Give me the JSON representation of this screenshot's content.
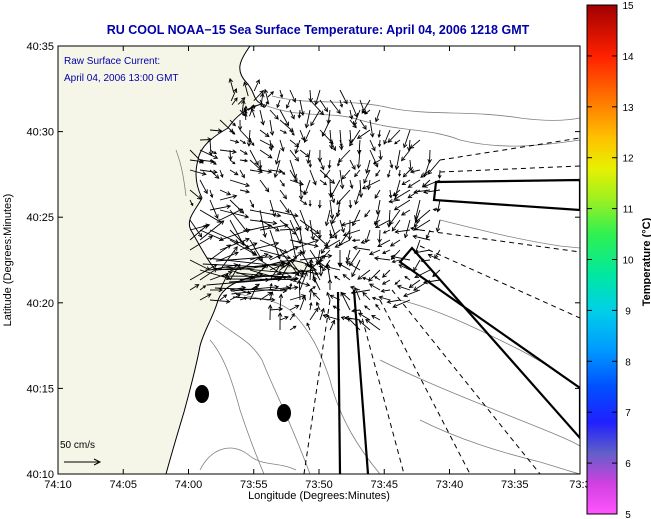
{
  "title": "RU COOL  NOAA−15  Sea Surface Temperature:  April 04, 2006 1218 GMT",
  "annotation": {
    "line1": "Raw Surface Current:",
    "line2": "April 04, 2006 13:00 GMT"
  },
  "scale_label": "50 cm/s",
  "colors": {
    "title": "#0000aa",
    "annotation": "#0000aa",
    "land": "#f6f6e8",
    "ocean": "#ffffff",
    "coast": "#000000",
    "bathymetry": "#808080",
    "vectors": "#000000"
  },
  "icons": {
    "current-vector": "arrow",
    "buoy-marker": "filled-ellipse",
    "radar-beam": "wedge-outline"
  },
  "chart_data": {
    "type": "map",
    "xlabel": "Longitude (Degrees:Minutes)",
    "ylabel": "Latitude (Degrees:Minutes)",
    "x_ticks": [
      "74:10",
      "74:05",
      "74:00",
      "73:55",
      "73:50",
      "73:45",
      "73:40",
      "73:35",
      "73:3"
    ],
    "y_ticks": [
      "40:35",
      "40:30",
      "40:25",
      "40:20",
      "40:15",
      "40:10"
    ],
    "xlim_minutes_west": [
      190,
      150
    ],
    "ylim_minutes_north": [
      10,
      35
    ],
    "colorbar": {
      "label": "Temperature (°C)",
      "ticks": [
        "15",
        "14",
        "13",
        "12",
        "11",
        "10",
        "9",
        "8",
        "7",
        "6",
        "5"
      ],
      "range": [
        5,
        15
      ]
    }
  }
}
